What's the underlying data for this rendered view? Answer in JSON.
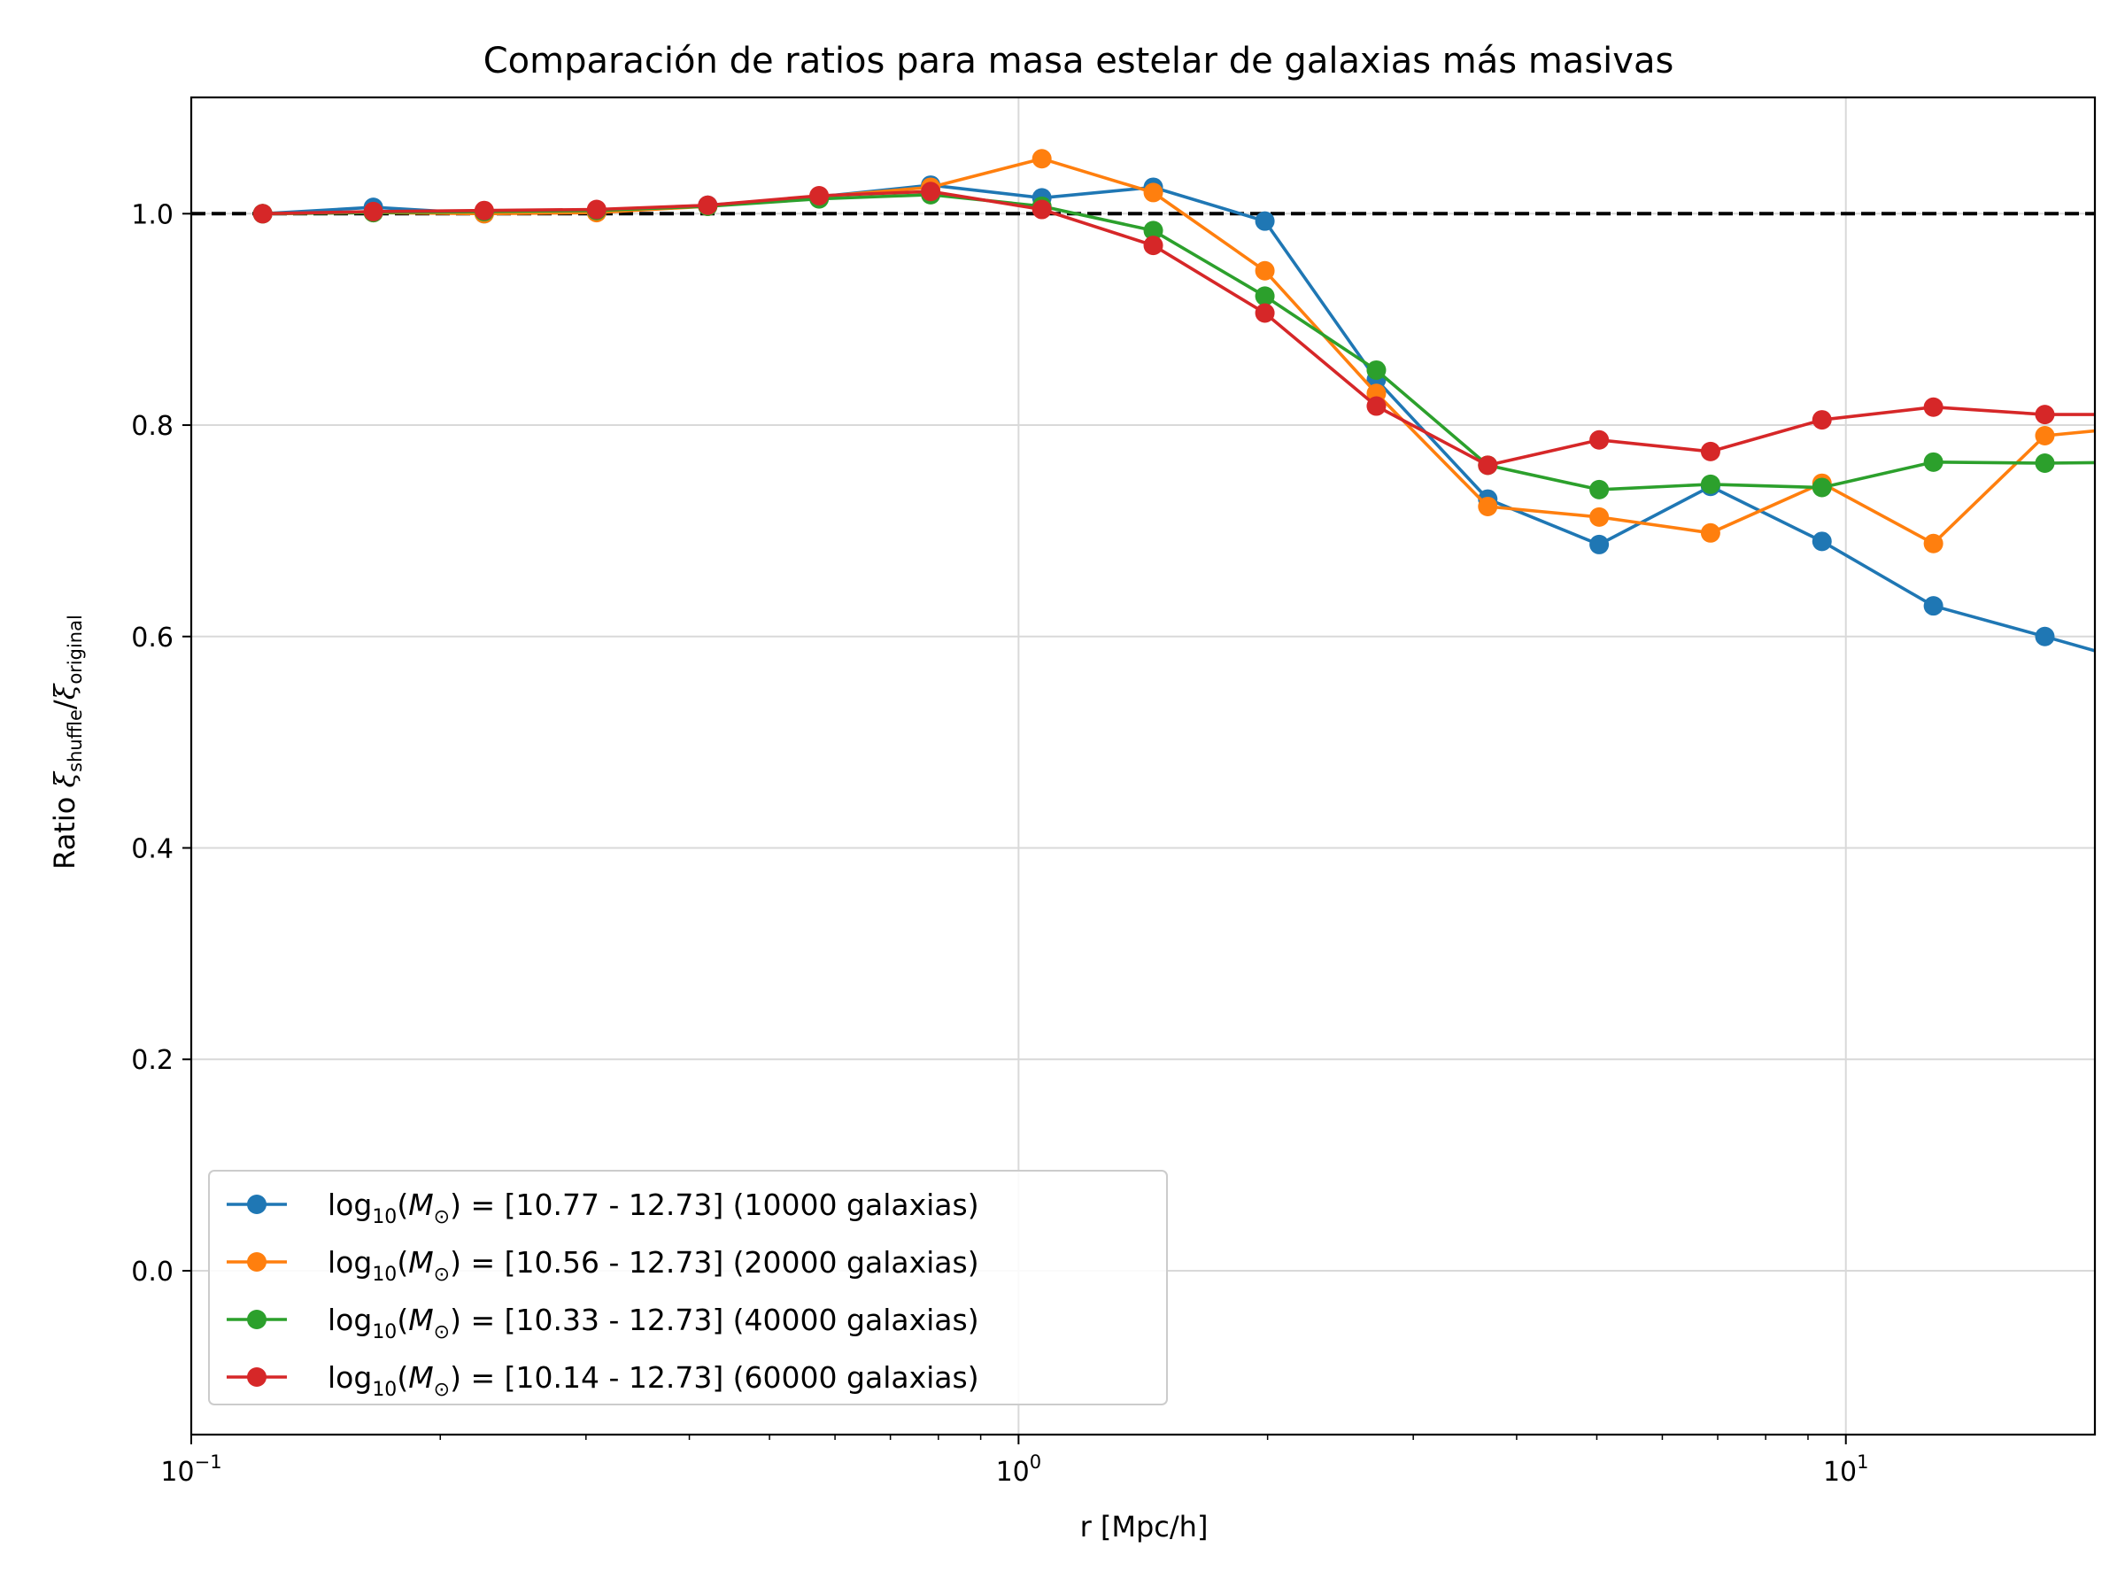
{
  "chart_data": {
    "type": "line",
    "title": "Comparación de ratios para masa estelar de galaxias más masivas",
    "xlabel": "r [Mpc/h]",
    "ylabel": {
      "prefix": "Ratio ",
      "sym1": "ξ",
      "sub1": "shuffle",
      "slash": "/",
      "sym2": "ξ",
      "sub2": "original"
    },
    "xscale": "log",
    "xlim": [
      0.1,
      20
    ],
    "ylim": [
      -0.155,
      1.11
    ],
    "grid": true,
    "legend_position": "lower-left",
    "reference_line": {
      "y": 1.0,
      "style": "dashed",
      "color": "#000000"
    },
    "x_ticks": [
      {
        "value": 0.1,
        "base": "10",
        "exp": "−1"
      },
      {
        "value": 1,
        "base": "10",
        "exp": "0"
      },
      {
        "value": 10,
        "base": "10",
        "exp": "1"
      }
    ],
    "y_ticks": [
      {
        "value": 0.0,
        "label": "0.0"
      },
      {
        "value": 0.2,
        "label": "0.2"
      },
      {
        "value": 0.4,
        "label": "0.4"
      },
      {
        "value": 0.6,
        "label": "0.6"
      },
      {
        "value": 0.8,
        "label": "0.8"
      },
      {
        "value": 1.0,
        "label": "1.0"
      }
    ],
    "x": [
      0.122,
      0.166,
      0.226,
      0.309,
      0.421,
      0.574,
      0.783,
      1.067,
      1.455,
      1.985,
      2.707,
      3.691,
      5.033,
      6.862,
      9.357,
      12.76,
      17.4,
      23.72
    ],
    "series": [
      {
        "color": "#1f77b4",
        "legend": {
          "pre": "log",
          "sub": "10",
          "mid": "(",
          "var": "M",
          "varsub": "⊙",
          "post": ") = [10.77 - 12.73] (10000 galaxias)"
        },
        "values": [
          1.0,
          1.006,
          1.0,
          1.003,
          1.008,
          1.016,
          1.027,
          1.015,
          1.025,
          0.993,
          0.843,
          0.73,
          0.687,
          0.742,
          0.69,
          0.629,
          0.6,
          0.57
        ]
      },
      {
        "color": "#ff7f0e",
        "legend": {
          "pre": "log",
          "sub": "10",
          "mid": "(",
          "var": "M",
          "varsub": "⊙",
          "post": ") = [10.56 - 12.73] (20000 galaxias)"
        },
        "values": [
          1.0,
          1.001,
          1.0,
          1.001,
          1.007,
          1.016,
          1.025,
          1.052,
          1.02,
          0.946,
          0.83,
          0.723,
          0.713,
          0.698,
          0.745,
          0.688,
          0.79,
          0.8
        ]
      },
      {
        "color": "#2ca02c",
        "legend": {
          "pre": "log",
          "sub": "10",
          "mid": "(",
          "var": "M",
          "varsub": "⊙",
          "post": ") = [10.33 - 12.73] (40000 galaxias)"
        },
        "values": [
          1.0,
          1.001,
          1.002,
          1.003,
          1.007,
          1.014,
          1.018,
          1.007,
          0.984,
          0.922,
          0.852,
          0.762,
          0.739,
          0.744,
          0.741,
          0.765,
          0.764,
          0.765
        ]
      },
      {
        "color": "#d62728",
        "legend": {
          "pre": "log",
          "sub": "10",
          "mid": "(",
          "var": "M",
          "varsub": "⊙",
          "post": ") = [10.14 - 12.73] (60000 galaxias)"
        },
        "values": [
          1.0,
          1.002,
          1.003,
          1.004,
          1.008,
          1.017,
          1.021,
          1.004,
          0.97,
          0.906,
          0.818,
          0.762,
          0.786,
          0.775,
          0.805,
          0.817,
          0.81,
          0.81
        ]
      }
    ]
  }
}
